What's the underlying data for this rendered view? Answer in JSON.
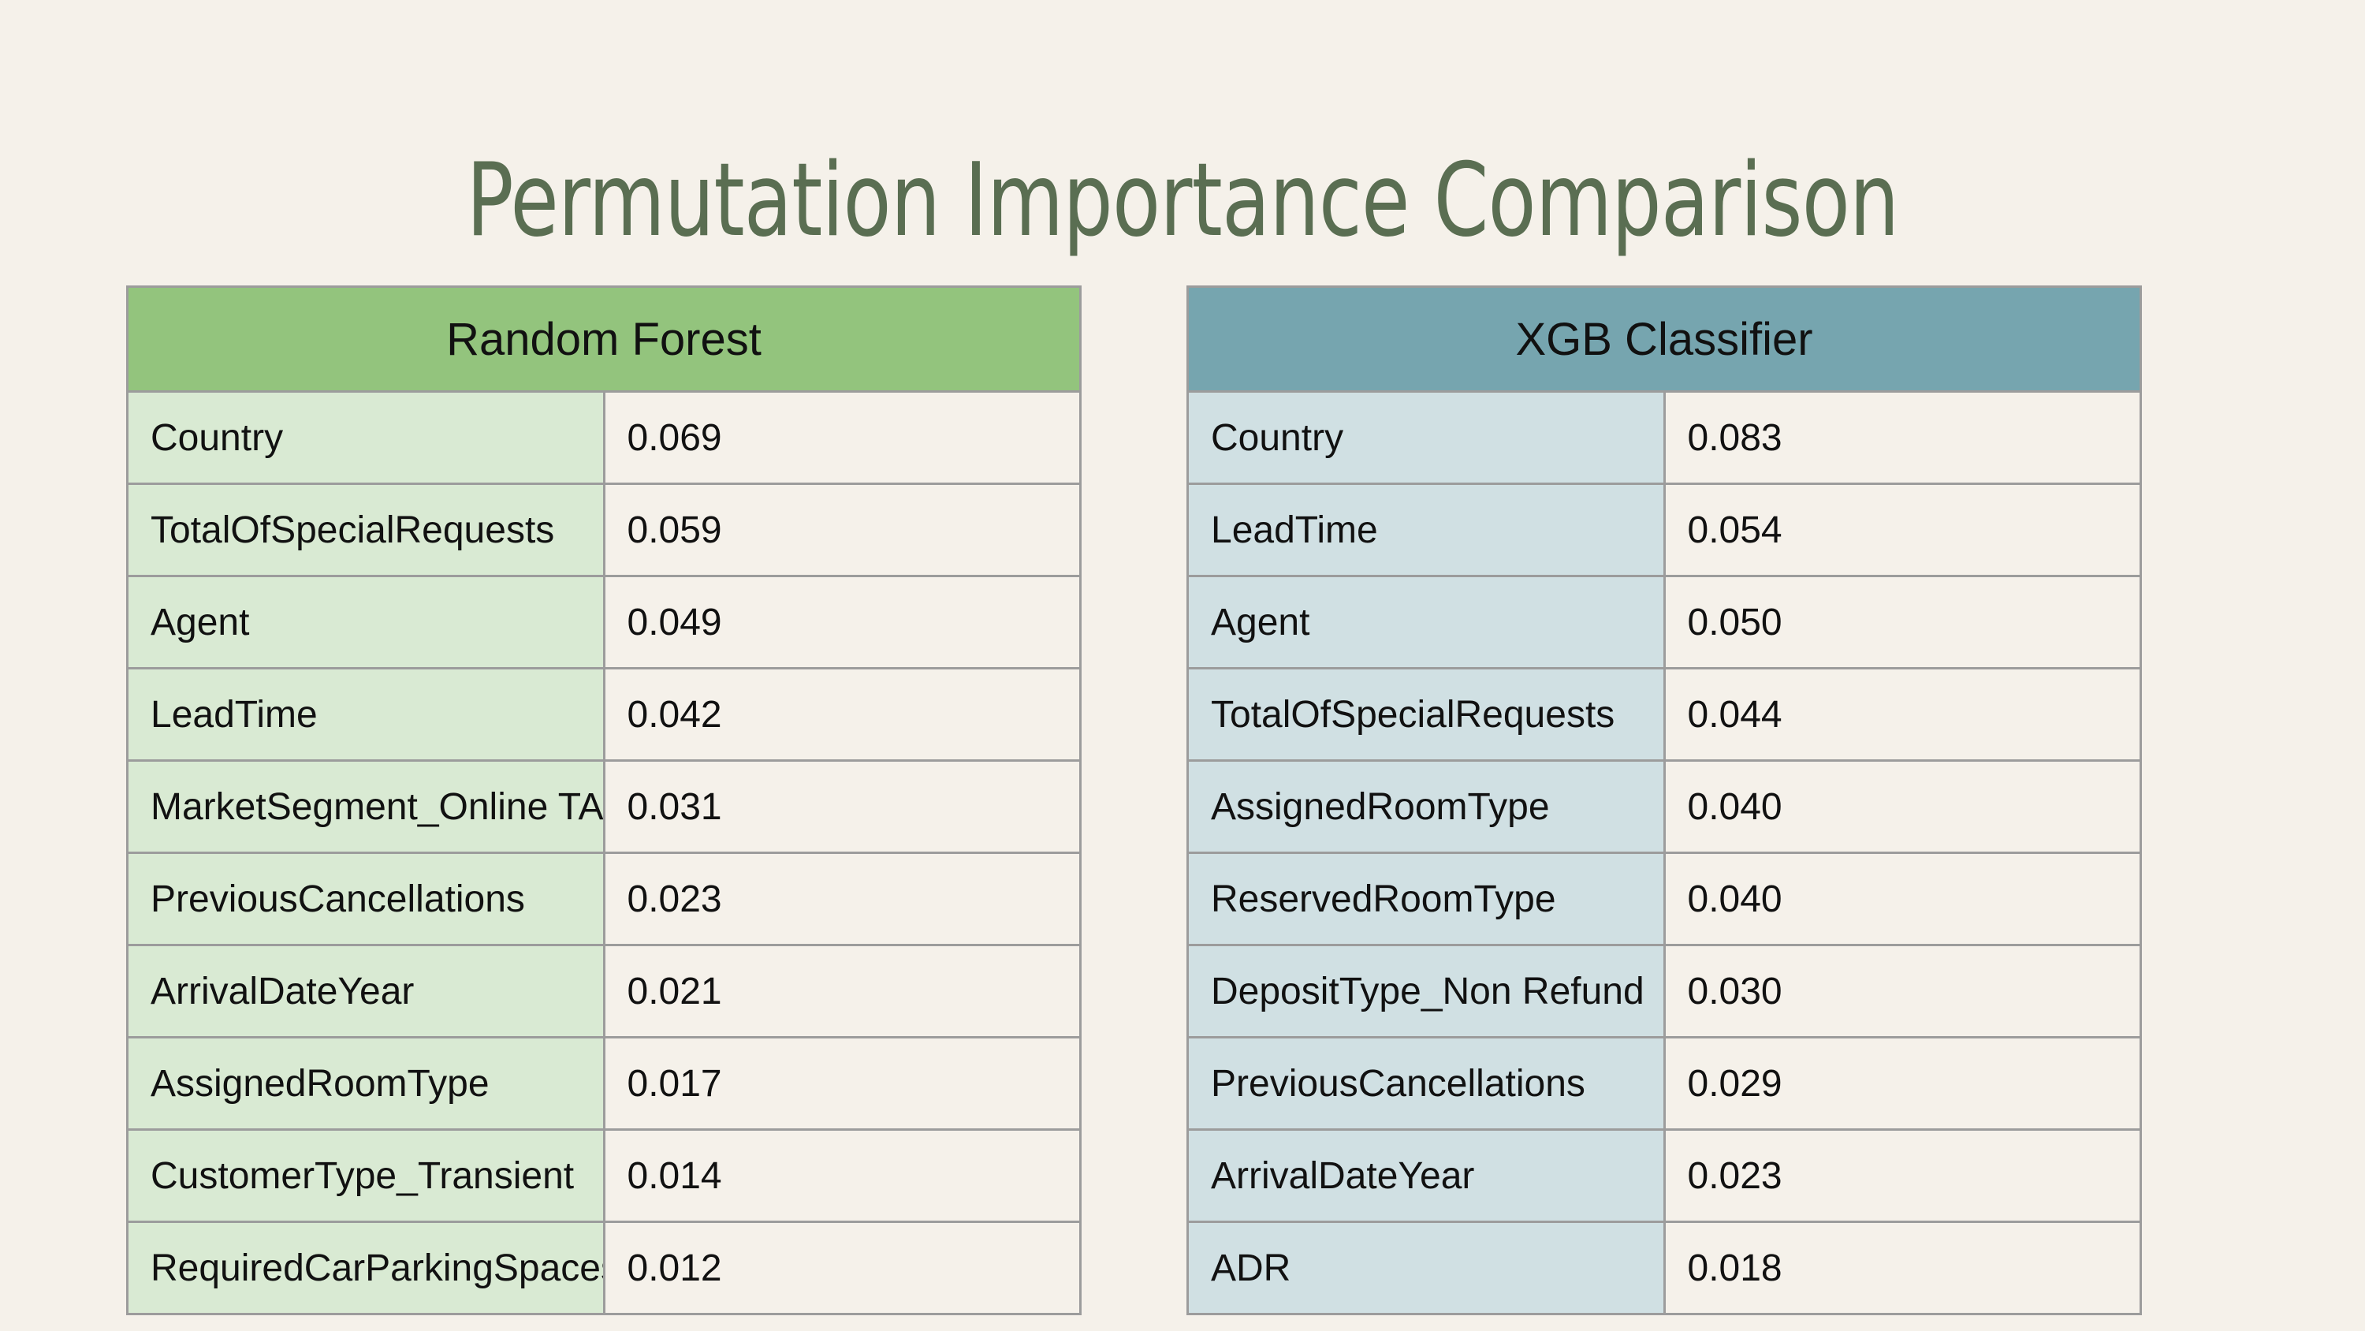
{
  "title": "Permutation Importance Comparison",
  "colors": {
    "background": "#f5f1ea",
    "title": "#5a6e52",
    "rf_header": "#93c47d",
    "rf_cell": "#d9ead3",
    "xgb_header": "#76a5af",
    "xgb_cell": "#d0e0e3",
    "border": "#9c9c9c"
  },
  "tables": [
    {
      "header": "Random Forest",
      "rows": [
        {
          "feature": "Country",
          "value": "0.069"
        },
        {
          "feature": "TotalOfSpecialRequests",
          "value": "0.059"
        },
        {
          "feature": "Agent",
          "value": "0.049"
        },
        {
          "feature": "LeadTime",
          "value": "0.042"
        },
        {
          "feature": "MarketSegment_Online TA",
          "value": "0.031"
        },
        {
          "feature": "PreviousCancellations",
          "value": "0.023"
        },
        {
          "feature": "ArrivalDateYear",
          "value": "0.021"
        },
        {
          "feature": "AssignedRoomType",
          "value": "0.017"
        },
        {
          "feature": "CustomerType_Transient",
          "value": "0.014"
        },
        {
          "feature": "RequiredCarParkingSpaces",
          "value": "0.012"
        }
      ]
    },
    {
      "header": "XGB Classifier",
      "rows": [
        {
          "feature": "Country",
          "value": "0.083"
        },
        {
          "feature": "LeadTime",
          "value": "0.054"
        },
        {
          "feature": "Agent",
          "value": "0.050"
        },
        {
          "feature": "TotalOfSpecialRequests",
          "value": "0.044"
        },
        {
          "feature": "AssignedRoomType",
          "value": "0.040"
        },
        {
          "feature": "ReservedRoomType",
          "value": "0.040"
        },
        {
          "feature": "DepositType_Non Refund",
          "value": "0.030"
        },
        {
          "feature": "PreviousCancellations",
          "value": "0.029"
        },
        {
          "feature": "ArrivalDateYear",
          "value": "0.023"
        },
        {
          "feature": "ADR",
          "value": "0.018"
        }
      ]
    }
  ]
}
